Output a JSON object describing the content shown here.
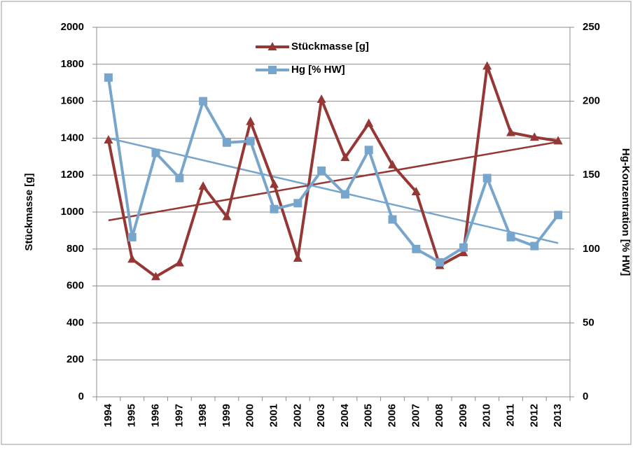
{
  "chart_data": {
    "type": "line",
    "categories": [
      "1994",
      "1995",
      "1996",
      "1997",
      "1998",
      "1999",
      "2000",
      "2001",
      "2002",
      "2003",
      "2004",
      "2005",
      "2006",
      "2007",
      "2008",
      "2009",
      "2010",
      "2011",
      "2012",
      "2013"
    ],
    "y_label": "Stückmasse [g]",
    "y2_label": "Hg-Konzentration [% HW]",
    "ylim": [
      0,
      2000
    ],
    "yticks": [
      0,
      200,
      400,
      600,
      800,
      1000,
      1200,
      1400,
      1600,
      1800,
      2000
    ],
    "y2lim": [
      0,
      250
    ],
    "y2ticks": [
      0,
      50,
      100,
      150,
      200,
      250
    ],
    "grid": true,
    "legend": "top",
    "series": [
      {
        "name": "Stückmasse [g]",
        "color": "#953735",
        "marker": "triangle",
        "values": [
          1390,
          745,
          650,
          725,
          1140,
          975,
          1490,
          1150,
          750,
          1610,
          1295,
          1480,
          1255,
          1110,
          710,
          780,
          1790,
          1430,
          1405,
          1385
        ],
        "trend": [
          955,
          1380
        ]
      },
      {
        "name": "Hg [% HW]",
        "color": "#77a5cc",
        "marker": "square",
        "axis": "y2",
        "values": [
          216,
          108,
          165,
          148,
          200,
          172,
          173,
          127,
          131,
          153,
          137,
          167,
          120,
          100,
          91,
          101,
          148,
          108,
          102,
          123
        ],
        "trend": [
          175,
          104
        ]
      }
    ]
  }
}
